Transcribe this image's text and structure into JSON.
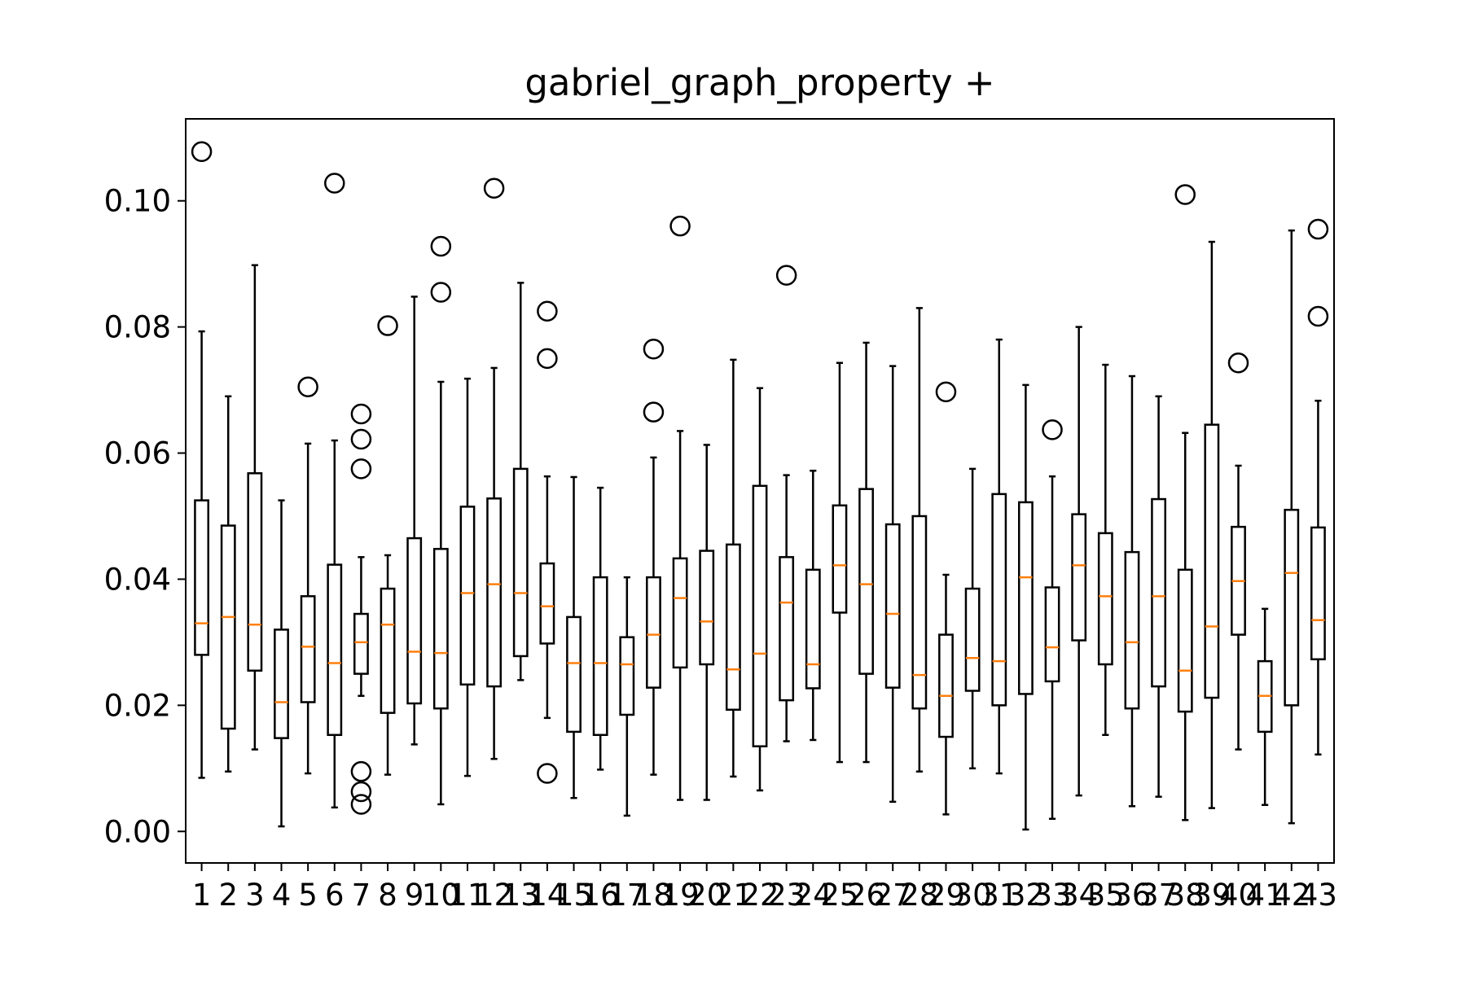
{
  "chart_data": {
    "type": "boxplot",
    "title": "gabriel_graph_property +",
    "xlabel": "",
    "ylabel": "",
    "ylim": [
      -0.005,
      0.113
    ],
    "yticks": [
      0.0,
      0.02,
      0.04,
      0.06,
      0.08,
      0.1
    ],
    "ytick_labels": [
      "0.00",
      "0.02",
      "0.04",
      "0.06",
      "0.08",
      "0.10"
    ],
    "grid": false,
    "legend": "none",
    "colors": {
      "box": "#000000",
      "median": "#ff7f0e",
      "flier": "#000000"
    },
    "categories": [
      "1",
      "2",
      "3",
      "4",
      "5",
      "6",
      "7",
      "8",
      "9",
      "10",
      "11",
      "12",
      "13",
      "14",
      "15",
      "16",
      "17",
      "18",
      "19",
      "20",
      "21",
      "22",
      "23",
      "24",
      "25",
      "26",
      "27",
      "28",
      "29",
      "30",
      "31",
      "32",
      "33",
      "34",
      "35",
      "36",
      "37",
      "38",
      "39",
      "40",
      "41",
      "42",
      "43"
    ],
    "boxes": [
      {
        "label": "1",
        "whislo": 0.0085,
        "q1": 0.028,
        "med": 0.033,
        "q3": 0.0525,
        "whishi": 0.0793,
        "fliers": [
          0.1078
        ]
      },
      {
        "label": "2",
        "whislo": 0.0095,
        "q1": 0.0163,
        "med": 0.034,
        "q3": 0.0485,
        "whishi": 0.069,
        "fliers": []
      },
      {
        "label": "3",
        "whislo": 0.013,
        "q1": 0.0255,
        "med": 0.0328,
        "q3": 0.0568,
        "whishi": 0.0898,
        "fliers": []
      },
      {
        "label": "4",
        "whislo": 0.0008,
        "q1": 0.0148,
        "med": 0.0205,
        "q3": 0.032,
        "whishi": 0.0525,
        "fliers": []
      },
      {
        "label": "5",
        "whislo": 0.0092,
        "q1": 0.0205,
        "med": 0.0293,
        "q3": 0.0373,
        "whishi": 0.0615,
        "fliers": [
          0.0705
        ]
      },
      {
        "label": "6",
        "whislo": 0.0038,
        "q1": 0.0153,
        "med": 0.0267,
        "q3": 0.0423,
        "whishi": 0.062,
        "fliers": [
          0.1028
        ]
      },
      {
        "label": "7",
        "whislo": 0.0215,
        "q1": 0.025,
        "med": 0.03,
        "q3": 0.0345,
        "whishi": 0.0435,
        "fliers": [
          0.0662,
          0.0622,
          0.0575,
          0.0095,
          0.0063,
          0.0043
        ]
      },
      {
        "label": "8",
        "whislo": 0.009,
        "q1": 0.0188,
        "med": 0.0328,
        "q3": 0.0385,
        "whishi": 0.0438,
        "fliers": [
          0.0802
        ]
      },
      {
        "label": "9",
        "whislo": 0.0138,
        "q1": 0.0203,
        "med": 0.0285,
        "q3": 0.0465,
        "whishi": 0.0848,
        "fliers": []
      },
      {
        "label": "10",
        "whislo": 0.0043,
        "q1": 0.0195,
        "med": 0.0283,
        "q3": 0.0448,
        "whishi": 0.0713,
        "fliers": [
          0.0928,
          0.0855
        ]
      },
      {
        "label": "11",
        "whislo": 0.0088,
        "q1": 0.0233,
        "med": 0.0378,
        "q3": 0.0515,
        "whishi": 0.0718,
        "fliers": []
      },
      {
        "label": "12",
        "whislo": 0.0115,
        "q1": 0.023,
        "med": 0.0392,
        "q3": 0.0528,
        "whishi": 0.0735,
        "fliers": [
          0.102
        ]
      },
      {
        "label": "13",
        "whislo": 0.024,
        "q1": 0.0278,
        "med": 0.0378,
        "q3": 0.0575,
        "whishi": 0.087,
        "fliers": []
      },
      {
        "label": "14",
        "whislo": 0.018,
        "q1": 0.0298,
        "med": 0.0357,
        "q3": 0.0425,
        "whishi": 0.0563,
        "fliers": [
          0.0825,
          0.075,
          0.0092
        ]
      },
      {
        "label": "15",
        "whislo": 0.0053,
        "q1": 0.0158,
        "med": 0.0267,
        "q3": 0.034,
        "whishi": 0.0562,
        "fliers": []
      },
      {
        "label": "16",
        "whislo": 0.0098,
        "q1": 0.0153,
        "med": 0.0267,
        "q3": 0.0403,
        "whishi": 0.0545,
        "fliers": []
      },
      {
        "label": "17",
        "whislo": 0.0025,
        "q1": 0.0185,
        "med": 0.0265,
        "q3": 0.0308,
        "whishi": 0.0403,
        "fliers": []
      },
      {
        "label": "18",
        "whislo": 0.009,
        "q1": 0.0228,
        "med": 0.0312,
        "q3": 0.0403,
        "whishi": 0.0593,
        "fliers": [
          0.0765,
          0.0665
        ]
      },
      {
        "label": "19",
        "whislo": 0.005,
        "q1": 0.026,
        "med": 0.037,
        "q3": 0.0433,
        "whishi": 0.0635,
        "fliers": [
          0.096
        ]
      },
      {
        "label": "20",
        "whislo": 0.005,
        "q1": 0.0265,
        "med": 0.0333,
        "q3": 0.0445,
        "whishi": 0.0613,
        "fliers": []
      },
      {
        "label": "21",
        "whislo": 0.0087,
        "q1": 0.0193,
        "med": 0.0257,
        "q3": 0.0455,
        "whishi": 0.0748,
        "fliers": []
      },
      {
        "label": "22",
        "whislo": 0.0065,
        "q1": 0.0135,
        "med": 0.0282,
        "q3": 0.0548,
        "whishi": 0.0703,
        "fliers": []
      },
      {
        "label": "23",
        "whislo": 0.0143,
        "q1": 0.0208,
        "med": 0.0363,
        "q3": 0.0435,
        "whishi": 0.0565,
        "fliers": [
          0.0882
        ]
      },
      {
        "label": "24",
        "whislo": 0.0145,
        "q1": 0.0227,
        "med": 0.0265,
        "q3": 0.0415,
        "whishi": 0.0572,
        "fliers": []
      },
      {
        "label": "25",
        "whislo": 0.011,
        "q1": 0.0347,
        "med": 0.0422,
        "q3": 0.0517,
        "whishi": 0.0743,
        "fliers": []
      },
      {
        "label": "26",
        "whislo": 0.011,
        "q1": 0.025,
        "med": 0.0392,
        "q3": 0.0543,
        "whishi": 0.0775,
        "fliers": []
      },
      {
        "label": "27",
        "whislo": 0.0047,
        "q1": 0.0228,
        "med": 0.0345,
        "q3": 0.0487,
        "whishi": 0.0738,
        "fliers": []
      },
      {
        "label": "28",
        "whislo": 0.0095,
        "q1": 0.0195,
        "med": 0.0248,
        "q3": 0.05,
        "whishi": 0.083,
        "fliers": []
      },
      {
        "label": "29",
        "whislo": 0.0027,
        "q1": 0.015,
        "med": 0.0215,
        "q3": 0.0312,
        "whishi": 0.0407,
        "fliers": [
          0.0697
        ]
      },
      {
        "label": "30",
        "whislo": 0.01,
        "q1": 0.0223,
        "med": 0.0275,
        "q3": 0.0385,
        "whishi": 0.0575,
        "fliers": []
      },
      {
        "label": "31",
        "whislo": 0.0092,
        "q1": 0.02,
        "med": 0.027,
        "q3": 0.0535,
        "whishi": 0.078,
        "fliers": []
      },
      {
        "label": "32",
        "whislo": 0.0003,
        "q1": 0.0218,
        "med": 0.0403,
        "q3": 0.0522,
        "whishi": 0.0708,
        "fliers": []
      },
      {
        "label": "33",
        "whislo": 0.002,
        "q1": 0.0238,
        "med": 0.0292,
        "q3": 0.0387,
        "whishi": 0.0563,
        "fliers": [
          0.0637
        ]
      },
      {
        "label": "34",
        "whislo": 0.0057,
        "q1": 0.0303,
        "med": 0.0422,
        "q3": 0.0503,
        "whishi": 0.08,
        "fliers": []
      },
      {
        "label": "35",
        "whislo": 0.0153,
        "q1": 0.0265,
        "med": 0.0373,
        "q3": 0.0473,
        "whishi": 0.074,
        "fliers": []
      },
      {
        "label": "36",
        "whislo": 0.004,
        "q1": 0.0195,
        "med": 0.03,
        "q3": 0.0443,
        "whishi": 0.0722,
        "fliers": []
      },
      {
        "label": "37",
        "whislo": 0.0055,
        "q1": 0.023,
        "med": 0.0373,
        "q3": 0.0527,
        "whishi": 0.069,
        "fliers": []
      },
      {
        "label": "38",
        "whislo": 0.0018,
        "q1": 0.019,
        "med": 0.0255,
        "q3": 0.0415,
        "whishi": 0.0632,
        "fliers": [
          0.101
        ]
      },
      {
        "label": "39",
        "whislo": 0.0037,
        "q1": 0.0212,
        "med": 0.0325,
        "q3": 0.0645,
        "whishi": 0.0935,
        "fliers": []
      },
      {
        "label": "40",
        "whislo": 0.013,
        "q1": 0.0312,
        "med": 0.0397,
        "q3": 0.0483,
        "whishi": 0.058,
        "fliers": [
          0.0743
        ]
      },
      {
        "label": "41",
        "whislo": 0.0042,
        "q1": 0.0158,
        "med": 0.0215,
        "q3": 0.027,
        "whishi": 0.0353,
        "fliers": []
      },
      {
        "label": "42",
        "whislo": 0.0013,
        "q1": 0.02,
        "med": 0.041,
        "q3": 0.051,
        "whishi": 0.0953,
        "fliers": []
      },
      {
        "label": "43",
        "whislo": 0.0122,
        "q1": 0.0273,
        "med": 0.0335,
        "q3": 0.0482,
        "whishi": 0.0683,
        "fliers": [
          0.0955,
          0.0817
        ]
      }
    ]
  }
}
